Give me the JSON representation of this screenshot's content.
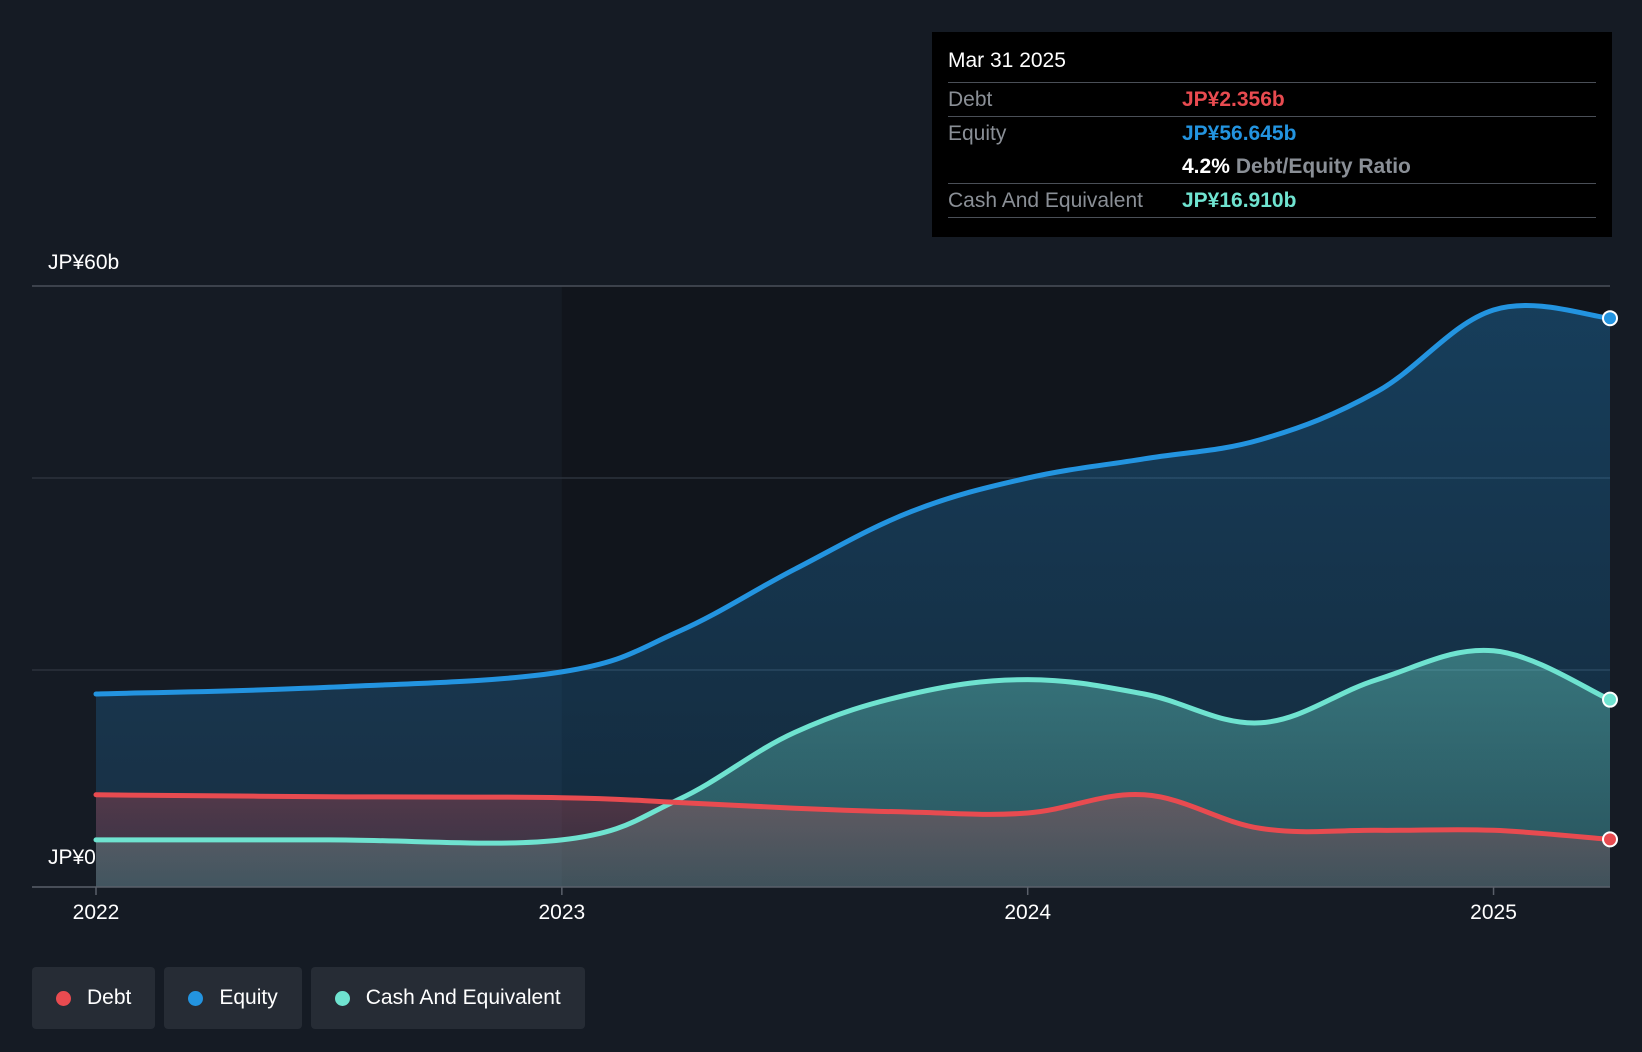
{
  "colors": {
    "debt": "#e84b50",
    "equity": "#2394e0",
    "cash": "#6fe3d0",
    "background": "#151b24",
    "plot_background": "#11151c"
  },
  "tooltip": {
    "date": "Mar 31 2025",
    "debt_label": "Debt",
    "debt_value": "JP¥2.356b",
    "equity_label": "Equity",
    "equity_value": "JP¥56.645b",
    "ratio_value": "4.2%",
    "ratio_label": "Debt/Equity Ratio",
    "cash_label": "Cash And Equivalent",
    "cash_value": "JP¥16.910b"
  },
  "legend": [
    {
      "label": "Debt",
      "color": "#e84b50"
    },
    {
      "label": "Equity",
      "color": "#2394e0"
    },
    {
      "label": "Cash And Equivalent",
      "color": "#6fe3d0"
    }
  ],
  "chart_data": {
    "type": "area",
    "title": "",
    "xlabel": "",
    "ylabel": "",
    "ylim": [
      0,
      60
    ],
    "xlim": [
      2022.0,
      2025.25
    ],
    "y_ticks": [
      {
        "value": 60,
        "label": "JP¥60b"
      },
      {
        "value": 0,
        "label": "JP¥0"
      }
    ],
    "gridlines": [
      60,
      40,
      20
    ],
    "x_ticks": [
      {
        "value": 2022,
        "label": "2022"
      },
      {
        "value": 2023,
        "label": "2023"
      },
      {
        "value": 2024,
        "label": "2024"
      },
      {
        "value": 2025,
        "label": "2025"
      }
    ],
    "highlight_region": [
      2023.0,
      2025.25
    ],
    "series": [
      {
        "name": "Equity",
        "x": [
          2022.0,
          2022.5,
          2023.0,
          2023.25,
          2023.5,
          2023.75,
          2024.0,
          2024.25,
          2024.5,
          2024.75,
          2025.0,
          2025.25
        ],
        "values": [
          17.5,
          18.2,
          19.8,
          24.0,
          30.5,
          36.5,
          40.0,
          42.0,
          44.0,
          49.0,
          57.5,
          56.645
        ]
      },
      {
        "name": "Cash And Equivalent",
        "x": [
          2022.0,
          2022.5,
          2023.0,
          2023.25,
          2023.5,
          2023.75,
          2024.0,
          2024.25,
          2024.5,
          2024.75,
          2025.0,
          2025.25
        ],
        "values": [
          2.3,
          2.3,
          2.3,
          6.5,
          13.5,
          17.5,
          19.0,
          17.5,
          14.5,
          19.0,
          22.0,
          16.91
        ]
      },
      {
        "name": "Debt",
        "x": [
          2022.0,
          2022.5,
          2023.0,
          2023.25,
          2023.5,
          2023.75,
          2024.0,
          2024.25,
          2024.5,
          2024.75,
          2025.0,
          2025.25
        ],
        "values": [
          7.0,
          6.8,
          6.7,
          6.2,
          5.6,
          5.2,
          5.1,
          7.0,
          3.5,
          3.3,
          3.3,
          2.356
        ]
      }
    ]
  }
}
